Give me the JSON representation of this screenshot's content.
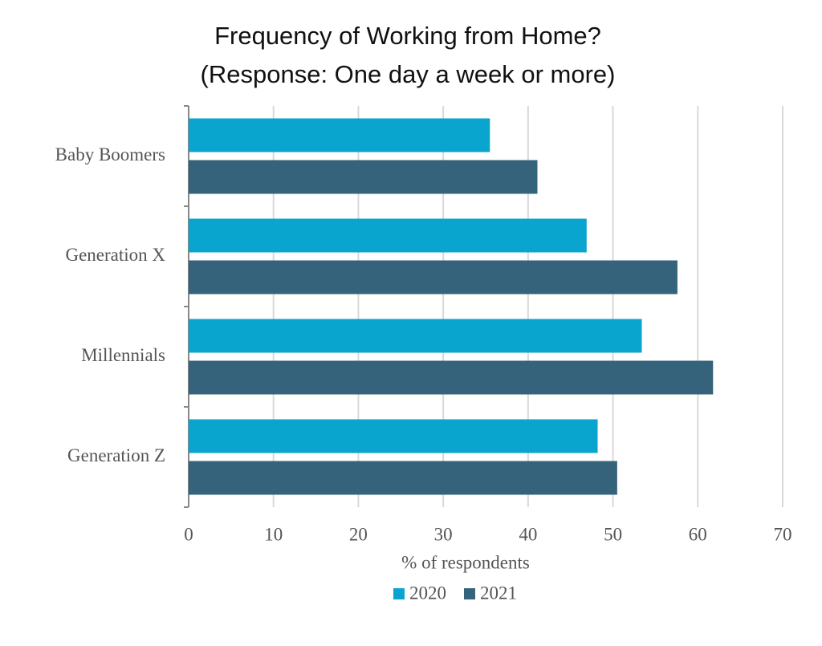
{
  "chart_data": {
    "type": "bar",
    "orientation": "horizontal",
    "title": "Frequency of Working from Home?",
    "subtitle": "(Response: One day a week or more)",
    "categories": [
      "Baby Boomers",
      "Generation X",
      "Millennials",
      "Generation Z"
    ],
    "series": [
      {
        "name": "2020",
        "color": "#0aa5cf",
        "values": [
          35.5,
          46.9,
          53.4,
          48.2
        ]
      },
      {
        "name": "2021",
        "color": "#35637c",
        "values": [
          41.1,
          57.6,
          61.8,
          50.5
        ]
      }
    ],
    "xlabel": "% of respondents",
    "xlim": [
      0,
      70
    ],
    "xticks": [
      0,
      10,
      20,
      30,
      40,
      50,
      60,
      70
    ],
    "grid": true,
    "legend": "bottom"
  }
}
